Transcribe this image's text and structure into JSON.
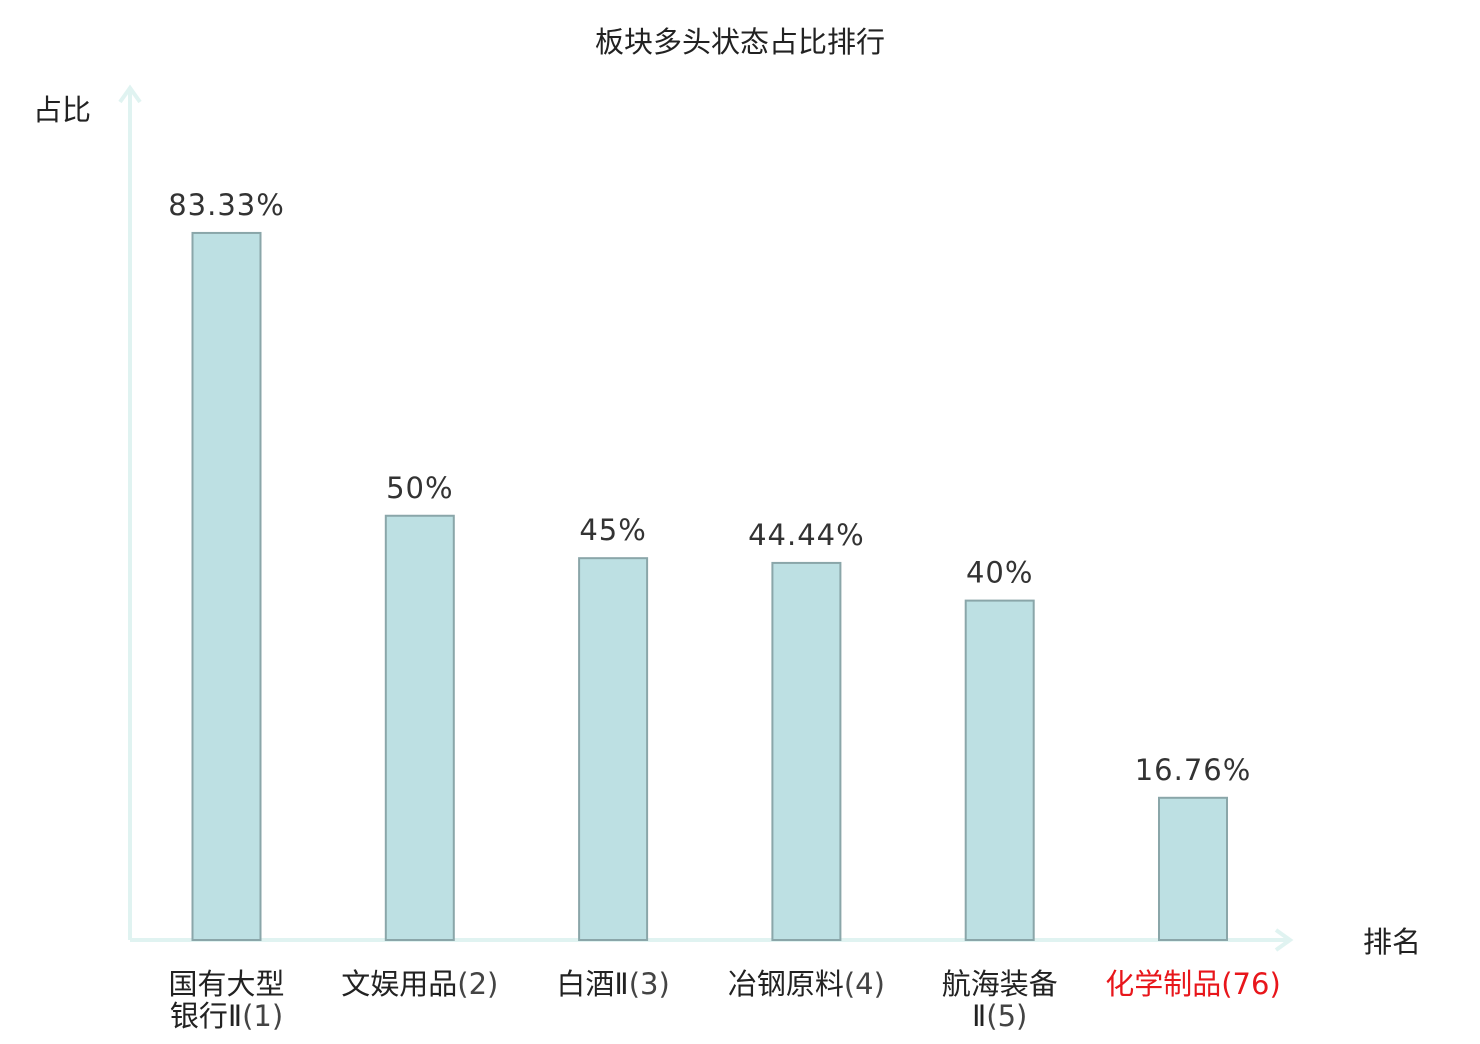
{
  "chart_data": {
    "type": "bar",
    "title": "板块多头状态占比排行",
    "ylabel": "占比",
    "xlabel": "排名",
    "ylim": [
      0,
      100
    ],
    "grid": false,
    "categories": [
      {
        "lines": [
          "国有大型",
          "银行Ⅱ"
        ],
        "rank": "(1)",
        "highlight": false
      },
      {
        "lines": [
          "文娱用品"
        ],
        "rank": "(2)",
        "highlight": false
      },
      {
        "lines": [
          "白酒Ⅱ"
        ],
        "rank": "(3)",
        "highlight": false
      },
      {
        "lines": [
          "冶钢原料"
        ],
        "rank": "(4)",
        "highlight": false
      },
      {
        "lines": [
          "航海装备",
          "Ⅱ"
        ],
        "rank": "(5)",
        "highlight": false
      },
      {
        "lines": [
          "化学制品"
        ],
        "rank": "(76)",
        "highlight": true
      }
    ],
    "values": [
      83.33,
      50,
      45,
      44.44,
      40,
      16.76
    ],
    "value_labels": [
      "83.33%",
      "50%",
      "45%",
      "44.44%",
      "40%",
      "16.76%"
    ],
    "colors": {
      "bar_fill": "#bde0e3",
      "bar_stroke": "#8aa6a9",
      "axis": "#e0f3f1",
      "text": "#222222",
      "value_text": "#333333",
      "rank_text": "#444444",
      "highlight": "#e8161b"
    }
  }
}
